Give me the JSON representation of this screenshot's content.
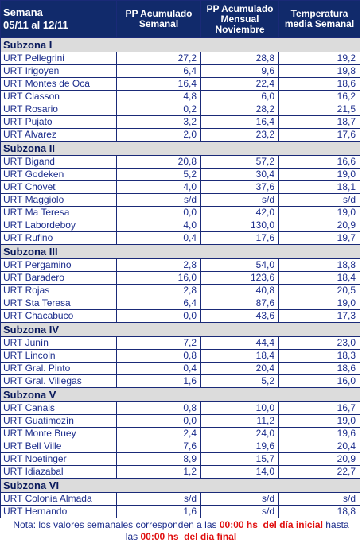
{
  "header": {
    "cells": [
      [
        "Semana",
        "05/11 al 12/11"
      ],
      [
        "PP Acumulado",
        "Semanal"
      ],
      [
        "PP Acumulado",
        "Mensual",
        "Noviembre"
      ],
      [
        "Temperatura",
        "media Semanal"
      ]
    ]
  },
  "groups": [
    {
      "name": "Subzona I",
      "rows": [
        [
          "URT Pellegrini",
          "27,2",
          "28,8",
          "19,2"
        ],
        [
          "URT Irigoyen",
          "6,4",
          "9,6",
          "19,8"
        ],
        [
          "URT Montes de Oca",
          "16,4",
          "22,4",
          "18,6"
        ],
        [
          "URT Classon",
          "4,8",
          "6,0",
          "16,2"
        ],
        [
          "URT Rosario",
          "0,2",
          "28,2",
          "21,5"
        ],
        [
          "URT Pujato",
          "3,2",
          "16,4",
          "18,7"
        ],
        [
          "URT Alvarez",
          "2,0",
          "23,2",
          "17,6"
        ]
      ]
    },
    {
      "name": "Subzona II",
      "rows": [
        [
          "URT Bigand",
          "20,8",
          "57,2",
          "16,6"
        ],
        [
          "URT Godeken",
          "5,2",
          "30,4",
          "19,0"
        ],
        [
          "URT Chovet",
          "4,0",
          "37,6",
          "18,1"
        ],
        [
          "URT Maggiolo",
          "s/d",
          "s/d",
          "s/d"
        ],
        [
          "URT Ma Teresa",
          "0,0",
          "42,0",
          "19,0"
        ],
        [
          "URT Labordeboy",
          "4,0",
          "130,0",
          "20,9"
        ],
        [
          "URT Rufino",
          "0,4",
          "17,6",
          "19,7"
        ]
      ]
    },
    {
      "name": "Subzona III",
      "rows": [
        [
          "URT Pergamino",
          "2,8",
          "54,0",
          "18,8"
        ],
        [
          "URT Baradero",
          "16,0",
          "123,6",
          "18,4"
        ],
        [
          "URT Rojas",
          "2,8",
          "40,8",
          "20,5"
        ],
        [
          "URT Sta Teresa",
          "6,4",
          "87,6",
          "19,0"
        ],
        [
          "URT Chacabuco",
          "0,0",
          "43,6",
          "17,3"
        ]
      ]
    },
    {
      "name": "Subzona IV",
      "rows": [
        [
          "URT Junín",
          "7,2",
          "44,4",
          "23,0"
        ],
        [
          "URT Lincoln",
          "0,8",
          "18,4",
          "18,3"
        ],
        [
          "URT Gral. Pinto",
          "0,4",
          "20,4",
          "18,6"
        ],
        [
          "URT Gral. Villegas",
          "1,6",
          "5,2",
          "16,0"
        ]
      ]
    },
    {
      "name": "Subzona V",
      "rows": [
        [
          "URT Canals",
          "0,8",
          "10,0",
          "16,7"
        ],
        [
          "URT Guatimozín",
          "0,0",
          "11,2",
          "19,0"
        ],
        [
          "URT Monte Buey",
          "2,4",
          "24,0",
          "19,6"
        ],
        [
          "URT Bell Ville",
          "7,6",
          "19,6",
          "20,4"
        ],
        [
          "URT Noetinger",
          "8,9",
          "15,7",
          "20,9"
        ],
        [
          "URT Idiazabal",
          "1,2",
          "14,0",
          "22,7"
        ]
      ]
    },
    {
      "name": "Subzona VI",
      "rows": [
        [
          "URT Colonia Almada",
          "s/d",
          "s/d",
          "s/d"
        ],
        [
          "URT Hernando",
          "1,6",
          "s/d",
          "18,8"
        ]
      ]
    }
  ],
  "note": {
    "line1": [
      {
        "text": "Nota: los valores semanales corresponden a las ",
        "red": false
      },
      {
        "text": "00:00 hs  del día inicial",
        "red": true
      },
      {
        "text": " hasta",
        "red": false
      }
    ],
    "line2": [
      {
        "text": "las ",
        "red": false
      },
      {
        "text": "00:00 hs  del día final",
        "red": true
      }
    ]
  }
}
